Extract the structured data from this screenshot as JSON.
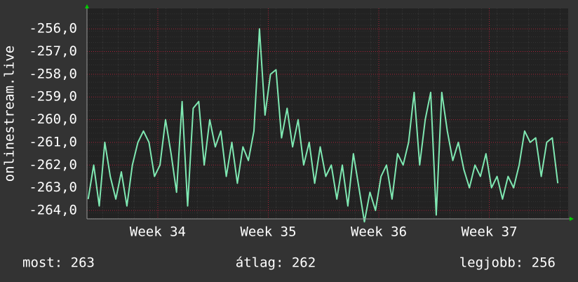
{
  "chart_data": {
    "type": "line",
    "y_label": "onlinestream.live",
    "x": [
      33.37,
      33.42,
      33.47,
      33.52,
      33.57,
      33.62,
      33.67,
      33.72,
      33.77,
      33.82,
      33.87,
      33.92,
      33.97,
      34.02,
      34.07,
      34.12,
      34.17,
      34.22,
      34.27,
      34.32,
      34.37,
      34.42,
      34.47,
      34.52,
      34.57,
      34.62,
      34.67,
      34.72,
      34.77,
      34.82,
      34.87,
      34.92,
      34.97,
      35.02,
      35.07,
      35.12,
      35.17,
      35.22,
      35.27,
      35.32,
      35.37,
      35.42,
      35.47,
      35.52,
      35.57,
      35.62,
      35.67,
      35.72,
      35.77,
      35.82,
      35.87,
      35.92,
      35.97,
      36.02,
      36.07,
      36.12,
      36.17,
      36.22,
      36.27,
      36.32,
      36.37,
      36.42,
      36.47,
      36.52,
      36.57,
      36.62,
      36.67,
      36.72,
      36.77,
      36.82,
      36.87,
      36.92,
      36.97,
      37.02,
      37.07,
      37.12,
      37.17,
      37.22,
      37.27,
      37.32,
      37.37,
      37.42,
      37.47,
      37.52,
      37.57,
      37.62
    ],
    "series": [
      {
        "name": "onlinestream.live",
        "color": "#7fe8b2",
        "values": [
          -263.5,
          -262.0,
          -263.8,
          -261.0,
          -262.5,
          -263.5,
          -262.3,
          -263.8,
          -262.0,
          -261.0,
          -260.5,
          -261.0,
          -262.5,
          -262.0,
          -260.0,
          -261.5,
          -263.2,
          -259.2,
          -263.8,
          -259.5,
          -259.2,
          -262.0,
          -260.0,
          -261.2,
          -260.5,
          -262.5,
          -261.0,
          -262.8,
          -261.2,
          -261.8,
          -260.5,
          -256.0,
          -259.8,
          -258.0,
          -257.8,
          -260.8,
          -259.5,
          -261.2,
          -260.0,
          -262.0,
          -261.0,
          -262.8,
          -261.2,
          -262.5,
          -262.0,
          -263.5,
          -262.0,
          -263.8,
          -261.5,
          -263.0,
          -264.5,
          -263.2,
          -264.0,
          -262.5,
          -262.0,
          -263.5,
          -261.5,
          -262.0,
          -261.0,
          -258.8,
          -262.0,
          -260.0,
          -258.8,
          -264.2,
          -258.8,
          -260.5,
          -261.8,
          -261.0,
          -262.2,
          -263.0,
          -262.0,
          -262.5,
          -261.5,
          -263.0,
          -262.5,
          -263.5,
          -262.5,
          -263.0,
          -262.0,
          -260.5,
          -261.0,
          -260.8,
          -262.5,
          -261.0,
          -260.8,
          -262.8
        ]
      }
    ],
    "xlim": [
      33.359,
      37.714
    ],
    "xticks": [
      {
        "value": 34,
        "label": "Week 34"
      },
      {
        "value": 35,
        "label": "Week 35"
      },
      {
        "value": 36,
        "label": "Week 36"
      },
      {
        "value": 37,
        "label": "Week 37"
      }
    ],
    "ylim": [
      -264.37,
      -255.1
    ],
    "yticks": [
      {
        "value": -264,
        "label": "-264,0"
      },
      {
        "value": -263,
        "label": "-263,0"
      },
      {
        "value": -262,
        "label": "-262,0"
      },
      {
        "value": -261,
        "label": "-261,0"
      },
      {
        "value": -260,
        "label": "-260,0"
      },
      {
        "value": -259,
        "label": "-259,0"
      },
      {
        "value": -258,
        "label": "-258,0"
      },
      {
        "value": -257,
        "label": "-257,0"
      },
      {
        "value": -256,
        "label": "-256,0"
      }
    ],
    "grid": true,
    "footer": [
      "most: 263",
      "átlag: 262",
      "legjobb: 256"
    ]
  }
}
